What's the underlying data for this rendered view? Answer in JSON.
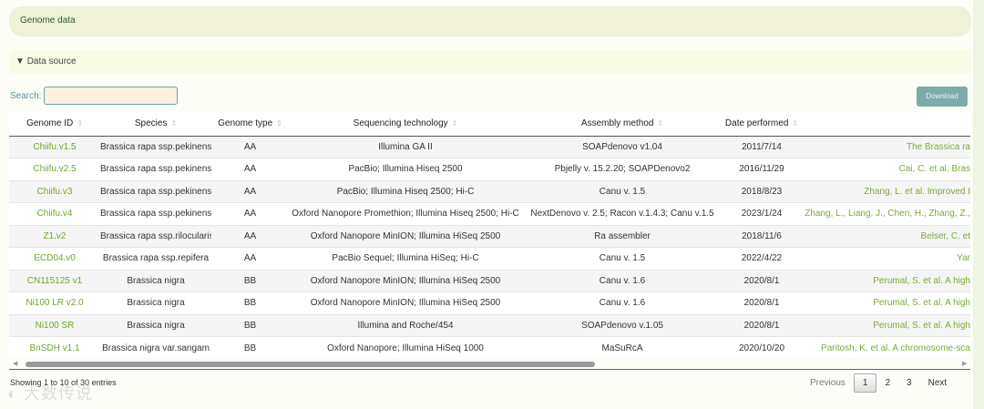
{
  "header": {
    "title": "Genome data"
  },
  "data_source": {
    "label": "Data source",
    "icon": "triangle-down-icon"
  },
  "search": {
    "label": "Search:",
    "value": ""
  },
  "download_label": "Download",
  "columns": [
    "Genome ID",
    "Species",
    "Genome type",
    "Sequencing technology",
    "Assembly method",
    "Date performed",
    ""
  ],
  "rows": [
    [
      "Chiifu.v1.5",
      "Brassica rapa ssp.pekinensis",
      "AA",
      "Illumina GA II",
      "SOAPdenovo v1.04",
      "2011/7/14",
      "The Brassica ra"
    ],
    [
      "Chiifu.v2.5",
      "Brassica rapa ssp.pekinensis",
      "AA",
      "PacBio; Illumina Hiseq 2500",
      "Pbjelly v. 15.2.20; SOAPDenovo2",
      "2016/11/29",
      "Cai, C. et al. Bras"
    ],
    [
      "Chiifu.v3",
      "Brassica rapa ssp.pekinensis",
      "AA",
      "PacBio; Illumina Hiseq 2500; Hi-C",
      "Canu v. 1.5",
      "2018/8/23",
      "Zhang, L. et al. Improved I"
    ],
    [
      "Chiifu.v4",
      "Brassica rapa ssp.pekinensis",
      "AA",
      "Oxford Nanopore Promethion; Illumina Hiseq 2500; Hi-C",
      "NextDenovo v. 2.5; Racon v.1.4.3; Canu v.1.5",
      "2023/1/24",
      "Zhang, L., Liang, J., Chen, H., Zhang, Z.,"
    ],
    [
      "Z1.v2",
      "Brassica rapa ssp.rilocularis",
      "AA",
      "Oxford Nanopore MinION; Illumina HiSeq 2500",
      "Ra assembler",
      "2018/11/6",
      "Belser, C. et"
    ],
    [
      "ECD04.v0",
      "Brassica rapa ssp.repifera",
      "AA",
      "PacBio Sequel; Illumina HiSeq; Hi-C",
      "Canu v. 1.5",
      "2022/4/22",
      "Yar"
    ],
    [
      "CN115125 v1",
      "Brassica nigra",
      "BB",
      "Oxford Nanopore MinION; Illumina HiSeq 2500",
      "Canu v. 1.6",
      "2020/8/1",
      "Perumal, S. et al. A high"
    ],
    [
      "Ni100 LR v2.0",
      "Brassica nigra",
      "BB",
      "Oxford Nanopore MinION; Illumina HiSeq 2500",
      "Canu v. 1.6",
      "2020/8/1",
      "Perumal, S. et al. A high"
    ],
    [
      "Ni100 SR",
      "Brassica nigra",
      "BB",
      "Illumina and Roche/454",
      "SOAPdenovo v.1.05",
      "2020/8/1",
      "Perumal, S. et al. A high"
    ],
    [
      "BnSDH v1.1",
      "Brassica nigra var.sangam",
      "BB",
      "Oxford Nanopore; Illumina HiSeq 1000",
      "MaSuRcA",
      "2020/10/20",
      "Paritosh, K. et al. A chromosome-sca"
    ]
  ],
  "footer": {
    "info": "Showing 1 to 10 of 30 entries",
    "previous": "Previous",
    "pages": [
      "1",
      "2",
      "3"
    ],
    "current_page": "1",
    "next": "Next"
  },
  "watermark": "大数传说"
}
